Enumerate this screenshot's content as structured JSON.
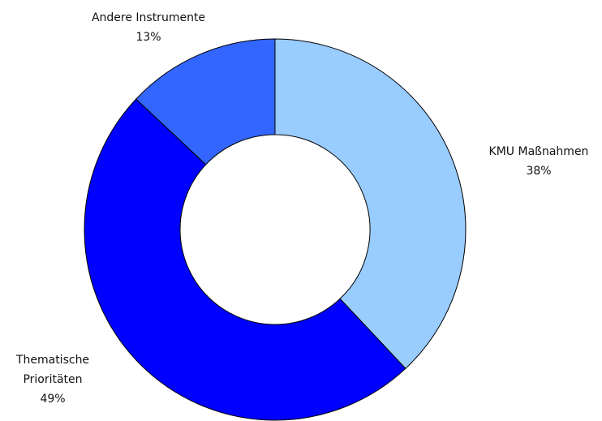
{
  "chart_data": {
    "type": "donut",
    "categories": [
      "KMU Maßnahmen",
      "Thematische Prioritäten",
      "Andere Instrumente"
    ],
    "values": [
      38,
      49,
      13
    ],
    "value_labels": [
      "38%",
      "49%",
      "13%"
    ],
    "colors": [
      "#99ccff",
      "#0000ff",
      "#3366ff"
    ]
  }
}
